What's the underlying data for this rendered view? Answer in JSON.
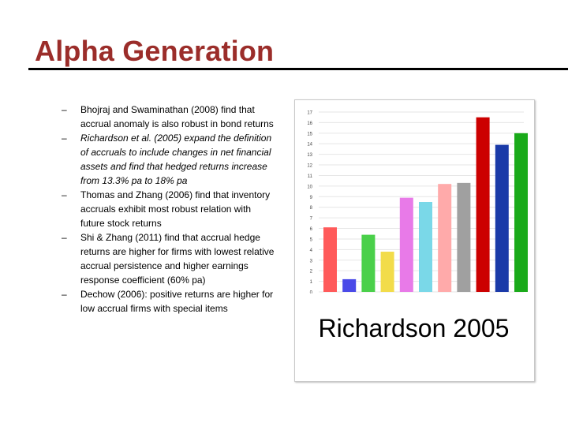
{
  "slide": {
    "title": "Alpha Generation",
    "bullets": [
      {
        "dash": "–",
        "text": "Bhojraj and Swaminathan (2008) find that accrual anomaly is also robust in bond returns",
        "italic": false
      },
      {
        "dash": "–",
        "text": "Richardson et al. (2005) expand the definition of accruals to include changes in net financial assets and find that hedged returns increase from 13.3% pa to 18% pa",
        "italic": true
      },
      {
        "dash": "–",
        "text": "Thomas and Zhang (2006) find that inventory accruals exhibit most robust relation with future stock returns",
        "italic": false
      },
      {
        "dash": "–",
        "text": "Shi & Zhang (2011) find that accrual hedge returns are higher for firms with lowest relative accrual persistence and higher earnings response coefficient (60% pa)",
        "italic": false
      },
      {
        "dash": "–",
        "text": "Dechow (2006): positive returns are higher for low accrual firms with special items",
        "italic": false
      }
    ],
    "caption": "Richardson 2005"
  },
  "chart_data": {
    "type": "bar",
    "title": "",
    "xlabel": "",
    "ylabel": "",
    "ylim": [
      0,
      17
    ],
    "yticks": [
      "0",
      "1",
      "2",
      "3",
      "4",
      "5",
      "6",
      "7",
      "8",
      "9",
      "10",
      "11",
      "12",
      "13",
      "14",
      "15",
      "16",
      "17"
    ],
    "grid": true,
    "values": [
      6.1,
      1.2,
      5.4,
      3.8,
      8.9,
      8.5,
      10.2,
      10.3,
      16.5,
      13.9,
      15.0
    ],
    "colors": [
      "#ff5a5a",
      "#4a4ae8",
      "#4ad04a",
      "#f2dc4a",
      "#e87ae8",
      "#7ad8e8",
      "#ffaaaa",
      "#a0a0a0",
      "#cc0000",
      "#1a3aa8",
      "#1aaa1a"
    ]
  }
}
